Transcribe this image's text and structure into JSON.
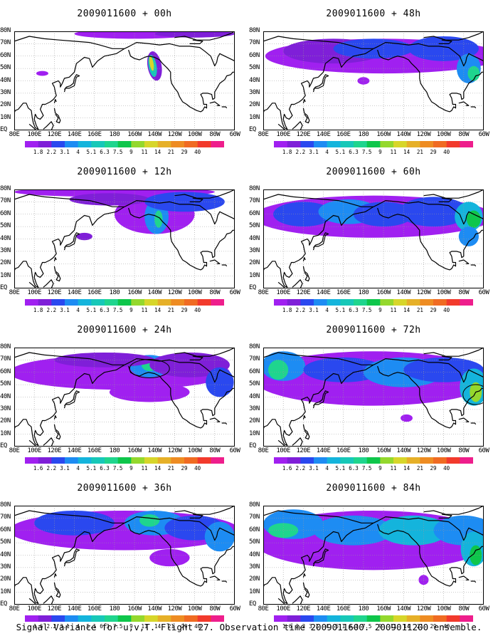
{
  "footer": "Signal Variance for u,v,T. Flight 27. Observation time 2009011600. 2009011200 ensemble.",
  "map_extent": {
    "lon_min": 80,
    "lon_max": 300,
    "lat_min": 0,
    "lat_max": 80
  },
  "lat_labels": [
    "80N",
    "70N",
    "60N",
    "50N",
    "40N",
    "30N",
    "20N",
    "10N",
    "EQ"
  ],
  "lon_labels": [
    "80E",
    "100E",
    "120E",
    "140E",
    "160E",
    "180",
    "160W",
    "140W",
    "120W",
    "100W",
    "80W",
    "60W"
  ],
  "colorbar": {
    "labels": [
      "1.8",
      "2.2",
      "3.1",
      "4",
      "5.1",
      "6.3",
      "7.5",
      "9",
      "11",
      "14",
      "21",
      "29",
      "40"
    ],
    "labels_alt": [
      "1.6",
      "2.2",
      "3.1",
      "4",
      "5.1",
      "6.3",
      "7.5",
      "9",
      "11",
      "14",
      "21",
      "29",
      "40"
    ],
    "colors": [
      "#a020f0",
      "#7f1fd8",
      "#2a48ef",
      "#1d8cf3",
      "#14b4dc",
      "#17c8b8",
      "#1fd58e",
      "#0ec64b",
      "#94d82d",
      "#d7d62a",
      "#e6b028",
      "#ee8c22",
      "#f06b22",
      "#f23a2c",
      "#ee1e8c"
    ]
  },
  "panels": [
    {
      "title": "2009011600 + 00h",
      "colorbar_style": "labels"
    },
    {
      "title": "2009011600 + 48h",
      "colorbar_style": "labels"
    },
    {
      "title": "2009011600 + 12h",
      "colorbar_style": "labels"
    },
    {
      "title": "2009011600 + 60h",
      "colorbar_style": "labels"
    },
    {
      "title": "2009011600 + 24h",
      "colorbar_style": "labels_alt"
    },
    {
      "title": "2009011600 + 72h",
      "colorbar_style": "labels_alt"
    },
    {
      "title": "2009011600 + 36h",
      "colorbar_style": "labels_alt"
    },
    {
      "title": "2009011600 + 84h",
      "colorbar_style": "labels_alt"
    }
  ],
  "colors": {
    "background": "#ffffff",
    "coast": "#000000",
    "grid": "#9a9a9a"
  }
}
